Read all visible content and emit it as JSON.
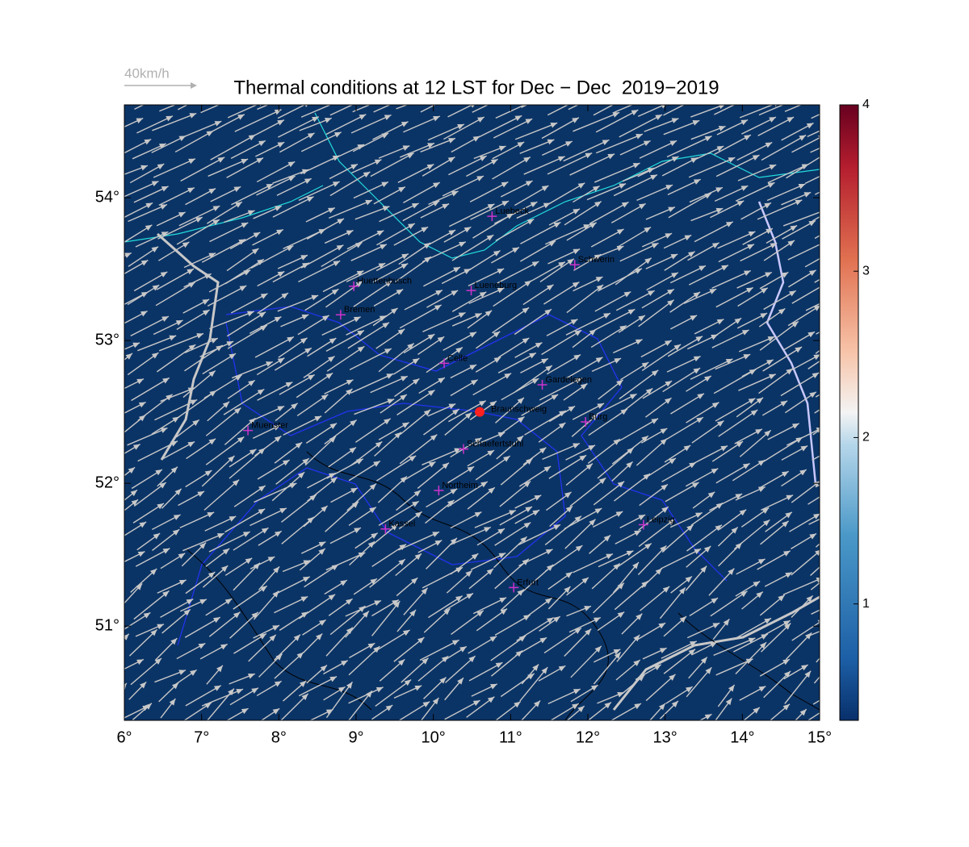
{
  "chart_data": {
    "type": "map",
    "title": "Thermal conditions at 12 LST for Dec − Dec  2019−2019",
    "wind_scale_label": "40km/h",
    "xlim": [
      6,
      15
    ],
    "ylim": [
      50.34,
      54.65
    ],
    "xticks": [
      {
        "value": 6,
        "label": "6°"
      },
      {
        "value": 7,
        "label": "7°"
      },
      {
        "value": 8,
        "label": "8°"
      },
      {
        "value": 9,
        "label": "9°"
      },
      {
        "value": 10,
        "label": "10°"
      },
      {
        "value": 11,
        "label": "11°"
      },
      {
        "value": 12,
        "label": "12°"
      },
      {
        "value": 13,
        "label": "13°"
      },
      {
        "value": 14,
        "label": "14°"
      },
      {
        "value": 15,
        "label": "15°"
      }
    ],
    "yticks": [
      {
        "value": 51,
        "label": "51°"
      },
      {
        "value": 52,
        "label": "52°"
      },
      {
        "value": 53,
        "label": "53°"
      },
      {
        "value": 54,
        "label": "54°"
      }
    ],
    "colorbar": {
      "lim": [
        0.3,
        4
      ],
      "ticks": [
        1,
        2,
        3,
        4
      ]
    },
    "cities": {
      "names": [
        "Luebeck",
        "Schwerin",
        "Huettenbusch",
        "Lueneburg",
        "Bremen",
        "Celle",
        "Gardelegen",
        "Burg",
        "Muenster",
        "Schaefertstuhl",
        "Northeim",
        "Kassel",
        "Leipzig",
        "Erfurt"
      ],
      "x": [
        10.76,
        11.83,
        8.97,
        10.49,
        8.8,
        10.14,
        11.41,
        11.97,
        7.6,
        10.39,
        10.07,
        9.38,
        12.72,
        11.04
      ],
      "y": [
        53.87,
        53.53,
        53.38,
        53.35,
        53.18,
        52.84,
        52.69,
        52.43,
        52.37,
        52.24,
        51.95,
        51.68,
        51.71,
        51.27
      ],
      "color": "#cc33cc"
    },
    "site": {
      "name": "Braunschweig",
      "x": 10.6,
      "y": 52.5,
      "color": "#ff2020"
    }
  }
}
